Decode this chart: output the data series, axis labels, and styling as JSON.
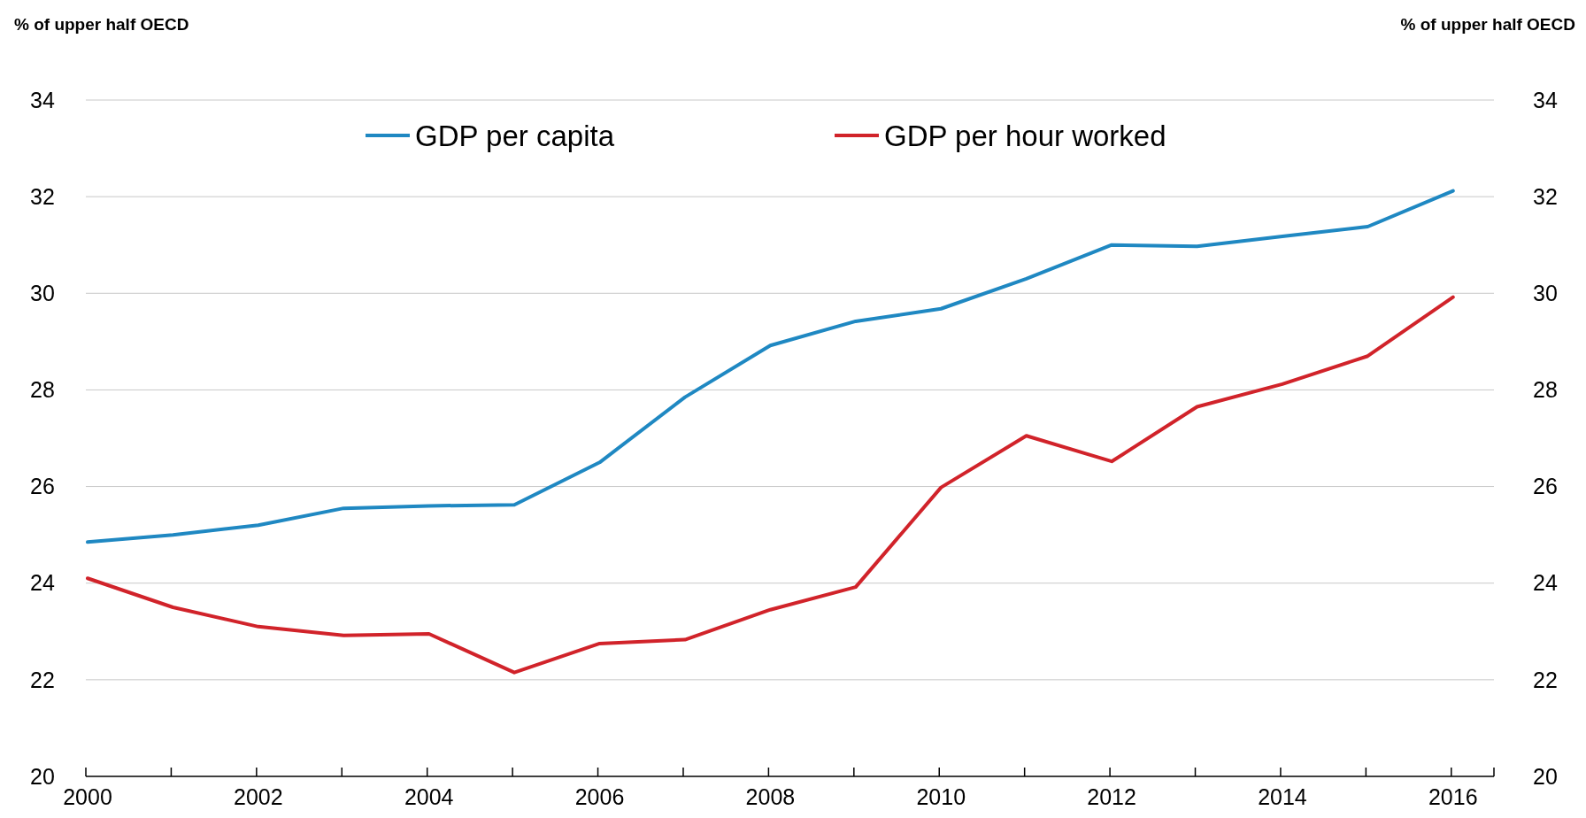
{
  "chart_data": {
    "type": "line",
    "ylabel": "% of upper half OECD",
    "y2label": "% of upper half OECD",
    "categories": [
      "2000",
      null,
      "2002",
      null,
      "2004",
      null,
      "2006",
      null,
      "2008",
      null,
      "2010",
      null,
      "2012",
      null,
      "2014",
      null,
      "2016"
    ],
    "series": [
      {
        "name": "GDP per capita",
        "color": "#1f88c2",
        "values": [
          24.85,
          25.0,
          25.2,
          25.55,
          25.6,
          25.62,
          26.5,
          27.85,
          28.92,
          29.42,
          29.68,
          30.3,
          31.0,
          30.97,
          31.18,
          31.38,
          32.12
        ]
      },
      {
        "name": "GDP per hour worked",
        "color": "#d1232a",
        "values": [
          24.1,
          23.5,
          23.1,
          22.92,
          22.95,
          22.15,
          22.75,
          22.83,
          23.45,
          23.92,
          25.98,
          27.05,
          26.52,
          27.65,
          28.12,
          28.7,
          29.92
        ]
      }
    ],
    "ylim": [
      20,
      34
    ],
    "yticks": [
      20,
      22,
      24,
      26,
      28,
      30,
      32,
      34
    ],
    "y2lim": [
      20,
      34
    ],
    "y2ticks": [
      20,
      22,
      24,
      26,
      28,
      30,
      32,
      34
    ],
    "grid": "y",
    "legend": "top",
    "marker": "none",
    "line_style": "solid"
  }
}
